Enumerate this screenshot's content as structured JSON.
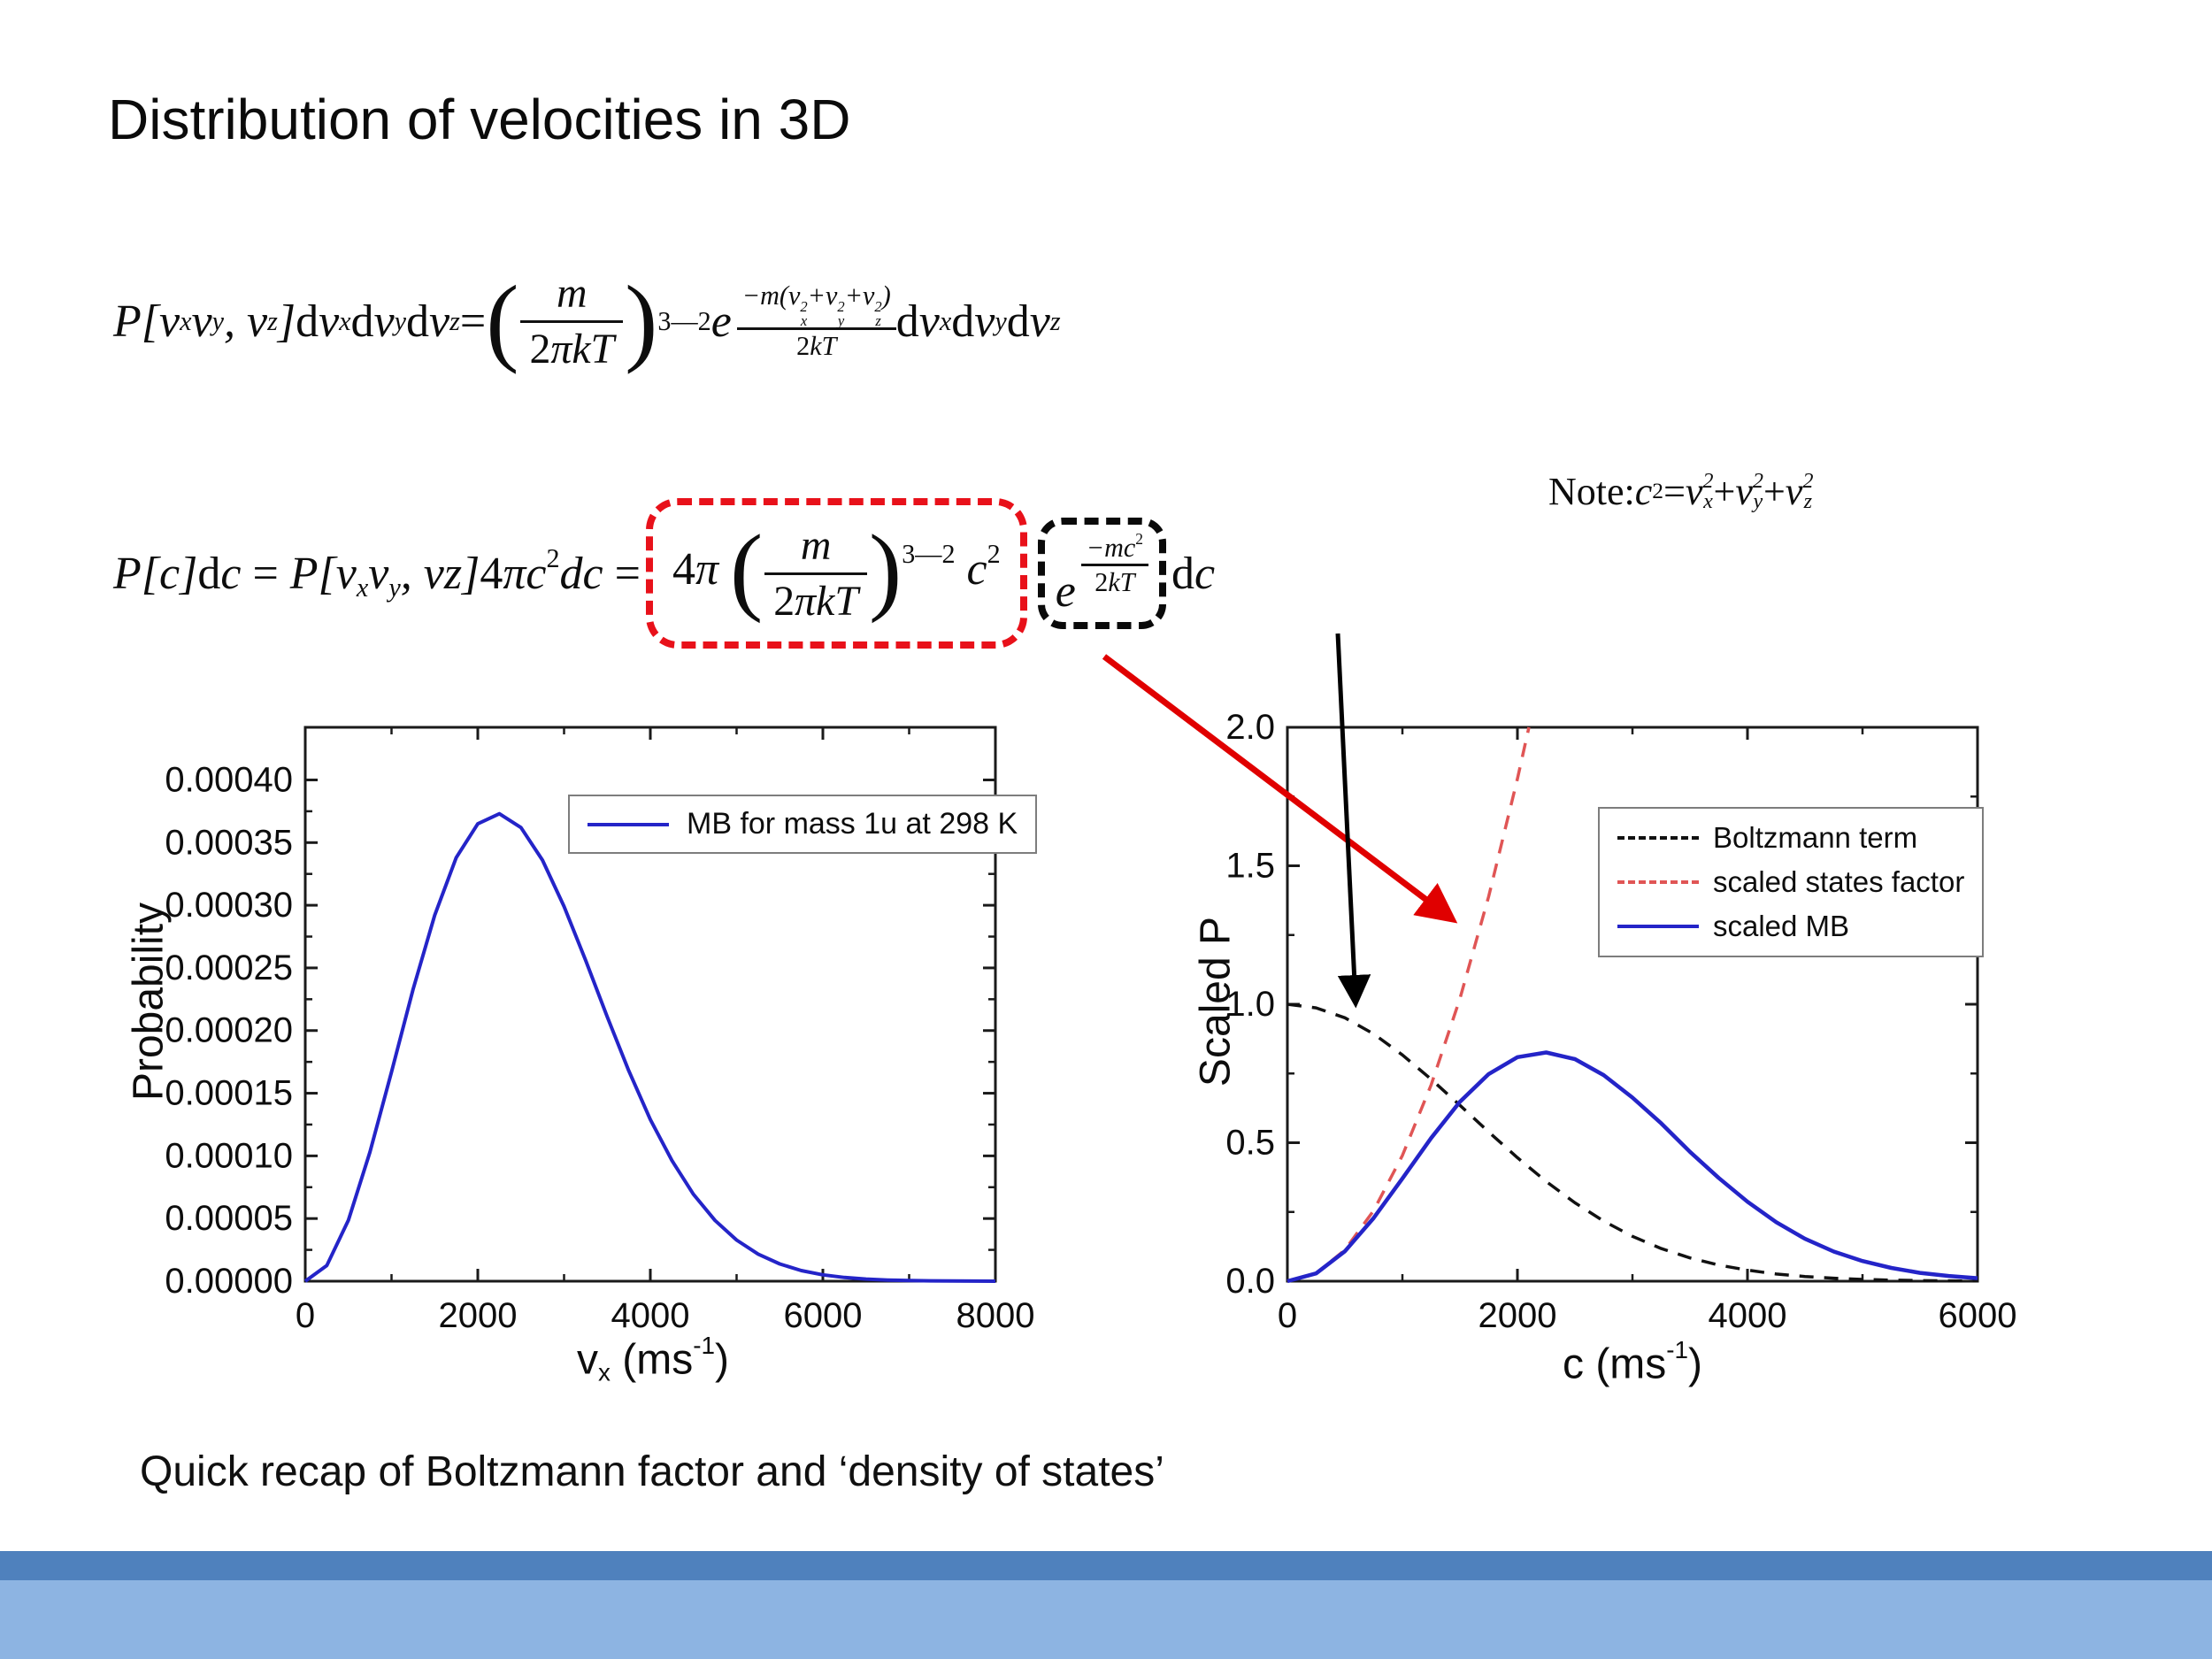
{
  "slide": {
    "title": "Distribution of velocities in 3D",
    "caption": "Quick recap of Boltzmann factor and ‘density of states’"
  },
  "equations": {
    "eq1_plain": "P[vx vy, vz]dvx dvy dvz = (m/2πkT)^(3/2) e^(−m(vx²+vy²+vz²)/2kT) dvx dvy dvz",
    "eq2_plain": "P[c]dc = P[vx vy, vz]4πc²dc = 4π(m/2πkT)^(3/2) c² e^(−mc²/2kT) dc",
    "note_plain": "Note: c² = vx² + vy² + vz²"
  },
  "math": {
    "eq1": [
      {
        "t": "i",
        "s": "P["
      },
      {
        "t": "i",
        "s": "v"
      },
      {
        "t": "sub",
        "s": "x"
      },
      {
        "t": "i",
        "s": "v"
      },
      {
        "t": "sub",
        "s": "y"
      },
      {
        "t": "i",
        "s": ", v"
      },
      {
        "t": "sub",
        "s": "z"
      },
      {
        "t": "i",
        "s": "]"
      },
      {
        "t": "r",
        "s": "d"
      },
      {
        "t": "i",
        "s": "v"
      },
      {
        "t": "sub",
        "s": "x"
      },
      {
        "t": "r",
        "s": "d"
      },
      {
        "t": "i",
        "s": "v"
      },
      {
        "t": "sub",
        "s": "y"
      },
      {
        "t": "r",
        "s": "d"
      },
      {
        "t": "i",
        "s": "v"
      },
      {
        "t": "sub",
        "s": "z"
      },
      {
        "t": "r",
        "s": " = "
      },
      {
        "t": "b",
        "s": "("
      },
      {
        "t": "frac",
        "n": [
          {
            "t": "i",
            "s": "m"
          }
        ],
        "d": [
          {
            "t": "r",
            "s": "2"
          },
          {
            "t": "i",
            "s": "πkT"
          }
        ]
      },
      {
        "t": "b",
        "s": ")"
      },
      {
        "t": "sup",
        "s": "3―2"
      },
      {
        "t": "i",
        "s": " e"
      },
      {
        "t": "supfrac",
        "n": [
          {
            "t": "i",
            "s": "−m("
          },
          {
            "t": "i",
            "s": "v"
          },
          {
            "t": "subsup",
            "sub": "x",
            "sup": "2"
          },
          {
            "t": "i",
            "s": "+v"
          },
          {
            "t": "subsup",
            "sub": "y",
            "sup": "2"
          },
          {
            "t": "i",
            "s": "+v"
          },
          {
            "t": "subsup",
            "sub": "z",
            "sup": "2"
          },
          {
            "t": "i",
            "s": ")"
          }
        ],
        "d": [
          {
            "t": "r",
            "s": "2"
          },
          {
            "t": "i",
            "s": "kT"
          }
        ]
      },
      {
        "t": "r",
        "s": " d"
      },
      {
        "t": "i",
        "s": "v"
      },
      {
        "t": "sub",
        "s": "x"
      },
      {
        "t": "r",
        "s": "d"
      },
      {
        "t": "i",
        "s": "v"
      },
      {
        "t": "sub",
        "s": "y"
      },
      {
        "t": "r",
        "s": "d"
      },
      {
        "t": "i",
        "s": "v"
      },
      {
        "t": "sub",
        "s": "z"
      }
    ],
    "eq2_pre": [
      {
        "t": "i",
        "s": "P["
      },
      {
        "t": "i",
        "s": "c"
      },
      {
        "t": "i",
        "s": "]"
      },
      {
        "t": "r",
        "s": "d"
      },
      {
        "t": "i",
        "s": "c"
      },
      {
        "t": "r",
        "s": " = "
      },
      {
        "t": "i",
        "s": "P["
      },
      {
        "t": "i",
        "s": "v"
      },
      {
        "t": "sub",
        "s": "x"
      },
      {
        "t": "i",
        "s": "v"
      },
      {
        "t": "sub",
        "s": "y"
      },
      {
        "t": "i",
        "s": ", vz"
      },
      {
        "t": "i",
        "s": "]"
      },
      {
        "t": "r",
        "s": "4"
      },
      {
        "t": "i",
        "s": "πc"
      },
      {
        "t": "sup",
        "s": "2"
      },
      {
        "t": "i",
        "s": "dc"
      },
      {
        "t": "r",
        "s": " ="
      }
    ],
    "eq2_red": [
      {
        "t": "r",
        "s": "4"
      },
      {
        "t": "i",
        "s": "π "
      },
      {
        "t": "b",
        "s": "("
      },
      {
        "t": "frac",
        "n": [
          {
            "t": "i",
            "s": "m"
          }
        ],
        "d": [
          {
            "t": "r",
            "s": "2"
          },
          {
            "t": "i",
            "s": "πkT"
          }
        ]
      },
      {
        "t": "b",
        "s": ")"
      },
      {
        "t": "sup",
        "s": "3―2"
      },
      {
        "t": "i",
        "s": " c"
      },
      {
        "t": "sup",
        "s": "2"
      }
    ],
    "eq2_black": [
      {
        "t": "i",
        "s": "e"
      },
      {
        "t": "supfrac",
        "n": [
          {
            "t": "i",
            "s": "−mc"
          },
          {
            "t": "sup",
            "s": "2"
          }
        ],
        "d": [
          {
            "t": "r",
            "s": "2"
          },
          {
            "t": "i",
            "s": "kT"
          }
        ]
      }
    ],
    "eq2_post": [
      {
        "t": "r",
        "s": " d"
      },
      {
        "t": "i",
        "s": "c"
      }
    ],
    "note": [
      {
        "t": "r",
        "s": "Note: "
      },
      {
        "t": "i",
        "s": "c"
      },
      {
        "t": "sup",
        "s": "2"
      },
      {
        "t": "r",
        "s": " = "
      },
      {
        "t": "i",
        "s": "v"
      },
      {
        "t": "subsup",
        "sub": "x",
        "sup": "2"
      },
      {
        "t": "r",
        "s": " + "
      },
      {
        "t": "i",
        "s": "v"
      },
      {
        "t": "subsup",
        "sub": "y",
        "sup": "2"
      },
      {
        "t": "r",
        "s": " + "
      },
      {
        "t": "i",
        "s": "v"
      },
      {
        "t": "subsup",
        "sub": "z",
        "sup": "2"
      }
    ],
    "left_xlabel": [
      {
        "t": "r",
        "s": "v"
      },
      {
        "t": "sub",
        "s": "x"
      },
      {
        "t": "r",
        "s": " (ms"
      },
      {
        "t": "sup",
        "s": "-1"
      },
      {
        "t": "r",
        "s": ")"
      }
    ],
    "right_xlabel": [
      {
        "t": "r",
        "s": "c (ms"
      },
      {
        "t": "sup",
        "s": "-1"
      },
      {
        "t": "r",
        "s": ")"
      }
    ]
  },
  "annotations": {
    "red_box_color": "#e8111a",
    "black_box_color": "#0a0a0a",
    "red_arrow_color": "#e00000",
    "black_arrow_color": "#000000",
    "red_arrow_meaning": "states factor term points to scaled states factor curve",
    "black_arrow_meaning": "Boltzmann term points to Boltzmann curve"
  },
  "theme": {
    "background": "#ffffff",
    "footer_dark": "#4F81BD",
    "footer_light": "#8DB4E2",
    "text": "#111111"
  },
  "chart_data": [
    {
      "type": "line",
      "title": "",
      "xlabel": "vx (ms-1)",
      "ylabel": "Probability",
      "xlim": [
        0,
        8000
      ],
      "ylim": [
        0,
        0.000442
      ],
      "xticks": [
        0,
        2000,
        4000,
        6000,
        8000
      ],
      "xtick_labels": [
        "0",
        "2000",
        "4000",
        "6000",
        "8000"
      ],
      "xminor": [
        1000,
        3000,
        5000,
        7000
      ],
      "yticks": [
        0,
        5e-05,
        0.0001,
        0.00015,
        0.0002,
        0.00025,
        0.0003,
        0.00035,
        0.0004
      ],
      "ytick_labels": [
        "0.00000",
        "0.00005",
        "0.00010",
        "0.00015",
        "0.00020",
        "0.00025",
        "0.00030",
        "0.00035",
        "0.00040"
      ],
      "yminor": [
        2.5e-05,
        7.5e-05,
        0.000125,
        0.000175,
        0.000225,
        0.000275,
        0.000325,
        0.000375
      ],
      "x_start": 0,
      "x_step": 250,
      "legend_position": "top-right",
      "series": [
        {
          "name": "MB for mass 1u at 298 K",
          "color": "#2424c8",
          "dash": false,
          "width": 4,
          "values": [
            0,
            1.26e-05,
            4.87e-05,
            0.000103,
            0.000167,
            0.000233,
            0.000292,
            0.000338,
            0.000365,
            0.000373,
            0.000362,
            0.000336,
            0.000299,
            0.000256,
            0.000211,
            0.000168,
            0.000129,
            9.63e-05,
            6.93e-05,
            4.85e-05,
            3.28e-05,
            2.16e-05,
            1.38e-05,
            8.5e-06,
            5.1e-06,
            3e-06,
            1.7e-06,
            9.4e-07,
            5e-07,
            2.6e-07,
            1.3e-07,
            6e-08,
            3e-08
          ]
        }
      ]
    },
    {
      "type": "line",
      "title": "",
      "xlabel": "c (ms-1)",
      "ylabel": "Scaled P",
      "xlim": [
        0,
        6000
      ],
      "ylim": [
        0,
        2
      ],
      "xticks": [
        0,
        2000,
        4000,
        6000
      ],
      "xtick_labels": [
        "0",
        "2000",
        "4000",
        "6000"
      ],
      "xminor": [
        1000,
        3000,
        5000
      ],
      "yticks": [
        0,
        0.5,
        1,
        1.5,
        2
      ],
      "ytick_labels": [
        "0.0",
        "0.5",
        "1.0",
        "1.5",
        "2.0"
      ],
      "yminor": [
        0.25,
        0.75,
        1.25,
        1.75
      ],
      "x_start": 0,
      "x_step": 250,
      "legend_position": "top-right",
      "series": [
        {
          "name": "Boltzmann term",
          "color": "#111111",
          "dash": true,
          "width": 3.5,
          "values": [
            1.0,
            0.987,
            0.951,
            0.893,
            0.817,
            0.729,
            0.635,
            0.539,
            0.446,
            0.36,
            0.283,
            0.217,
            0.162,
            0.118,
            0.084,
            0.058,
            0.04,
            0.026,
            0.017,
            0.011,
            0.0064,
            0.0038,
            0.0022,
            0.0013,
            0.0007
          ]
        },
        {
          "name": "scaled states factor",
          "color": "#e05555",
          "dash": true,
          "width": 3.5,
          "x": [
            0,
            250,
            500,
            750,
            1000,
            1250,
            1500,
            1750,
            2000,
            2100
          ],
          "values": [
            0,
            0.028,
            0.113,
            0.255,
            0.454,
            0.709,
            1.02,
            1.389,
            1.814,
            2.0
          ]
        },
        {
          "name": "scaled MB",
          "color": "#2424c8",
          "dash": false,
          "width": 4.5,
          "values": [
            0,
            0.028,
            0.108,
            0.228,
            0.371,
            0.517,
            0.648,
            0.748,
            0.809,
            0.826,
            0.802,
            0.744,
            0.663,
            0.57,
            0.467,
            0.373,
            0.287,
            0.213,
            0.153,
            0.107,
            0.073,
            0.048,
            0.03,
            0.019,
            0.011
          ]
        }
      ]
    }
  ]
}
